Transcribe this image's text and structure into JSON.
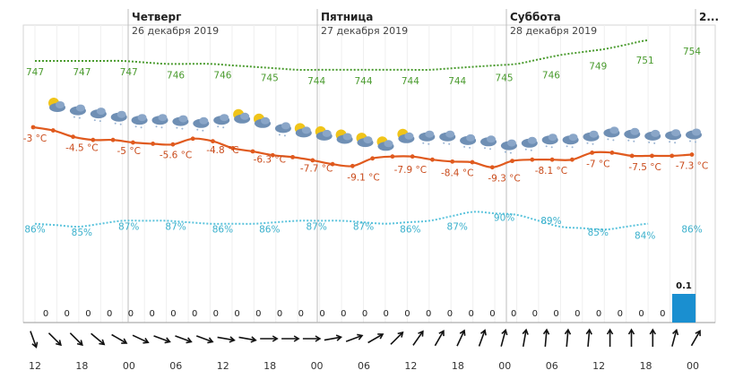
{
  "chart_data": {
    "type": "line",
    "days": [
      {
        "name": "Четверг",
        "date": "26 декабря 2019"
      },
      {
        "name": "Пятница",
        "date": "27 декабря 2019"
      },
      {
        "name": "Суббота",
        "date": "28 декабря 2019"
      },
      {
        "name": "2...",
        "date": ""
      }
    ],
    "x_ticks": [
      "12",
      "18",
      "00",
      "06",
      "12",
      "18",
      "00",
      "06",
      "12",
      "18",
      "00",
      "06",
      "12",
      "18",
      "00"
    ],
    "pressure": {
      "labels": [
        "747",
        "747",
        "747",
        "746",
        "746",
        "745",
        "744",
        "744",
        "744",
        "744",
        "745",
        "746",
        "749",
        "751",
        "754"
      ],
      "color": "#4a9b2e"
    },
    "temperature": {
      "values": [
        -3,
        -3.5,
        -4.5,
        -5,
        -5,
        -5.4,
        -5.6,
        -5.7,
        -4.8,
        -5.2,
        -6.3,
        -6.8,
        -7.4,
        -7.7,
        -8.2,
        -8.8,
        -9.1,
        -7.9,
        -7.6,
        -7.6,
        -8.1,
        -8.4,
        -8.5,
        -9.3,
        -8.3,
        -8.1,
        -8.1,
        -8.1,
        -7,
        -7,
        -7.5,
        -7.5,
        -7.5,
        -7.3
      ],
      "labels": [
        "-3 °C",
        "-4.5 °C",
        "-5 °C",
        "-5.6 °C",
        "-4.8 °C",
        "-6.3 °C",
        "-7.7 °C",
        "-9.1 °C",
        "-7.9 °C",
        "-8.4 °C",
        "-9.3 °C",
        "-8.1 °C",
        "-7 °C",
        "-7.5 °C",
        "-7.3 °C"
      ],
      "color": "#e05a1e"
    },
    "humidity": {
      "labels": [
        "86%",
        "85%",
        "87%",
        "87%",
        "86%",
        "86%",
        "87%",
        "87%",
        "86%",
        "87%",
        "90%",
        "89%",
        "85%",
        "84%",
        "86%"
      ],
      "color": "#5bc3dc"
    },
    "precipitation": {
      "values": [
        0,
        0,
        0,
        0,
        0,
        0,
        0,
        0,
        0,
        0,
        0,
        0,
        0,
        0,
        0,
        0,
        0,
        0,
        0,
        0,
        0,
        0,
        0,
        0,
        0,
        0,
        0,
        0,
        0,
        0,
        0.1
      ],
      "labels": [
        "0",
        "0",
        "0",
        "0",
        "0",
        "0",
        "0",
        "0",
        "0",
        "0",
        "0",
        "0",
        "0",
        "0",
        "0",
        "0",
        "0",
        "0",
        "0",
        "0",
        "0",
        "0",
        "0",
        "0",
        "0",
        "0",
        "0",
        "0",
        "0",
        "0",
        "0.1"
      ],
      "color": "#1a8fd0"
    },
    "weather_icons": [
      "sun-cloud",
      "cloud-snow",
      "cloud-snow",
      "cloud-snow",
      "cloud-snow",
      "cloud-snow",
      "cloud-snow",
      "cloud-snow",
      "cloud-snow",
      "sun-cloud",
      "sun-cloud",
      "cloud-snow",
      "sun-cloud",
      "sun-cloud",
      "sun-cloud",
      "sun-cloud",
      "sun-cloud",
      "sun-cloud",
      "cloud-snow",
      "cloud-snow",
      "cloud-snow",
      "cloud-snow",
      "cloud-snow",
      "cloud-snow",
      "cloud-snow",
      "cloud-snow",
      "cloud-snow",
      "cloud-snow",
      "cloud-snow",
      "cloud-snow",
      "cloud-snow",
      "cloud-snow"
    ],
    "wind_directions_deg": [
      160,
      135,
      135,
      130,
      120,
      115,
      110,
      110,
      110,
      100,
      100,
      90,
      90,
      90,
      80,
      70,
      60,
      45,
      35,
      30,
      25,
      20,
      15,
      10,
      5,
      5,
      5,
      0,
      0,
      0,
      15,
      30
    ]
  }
}
